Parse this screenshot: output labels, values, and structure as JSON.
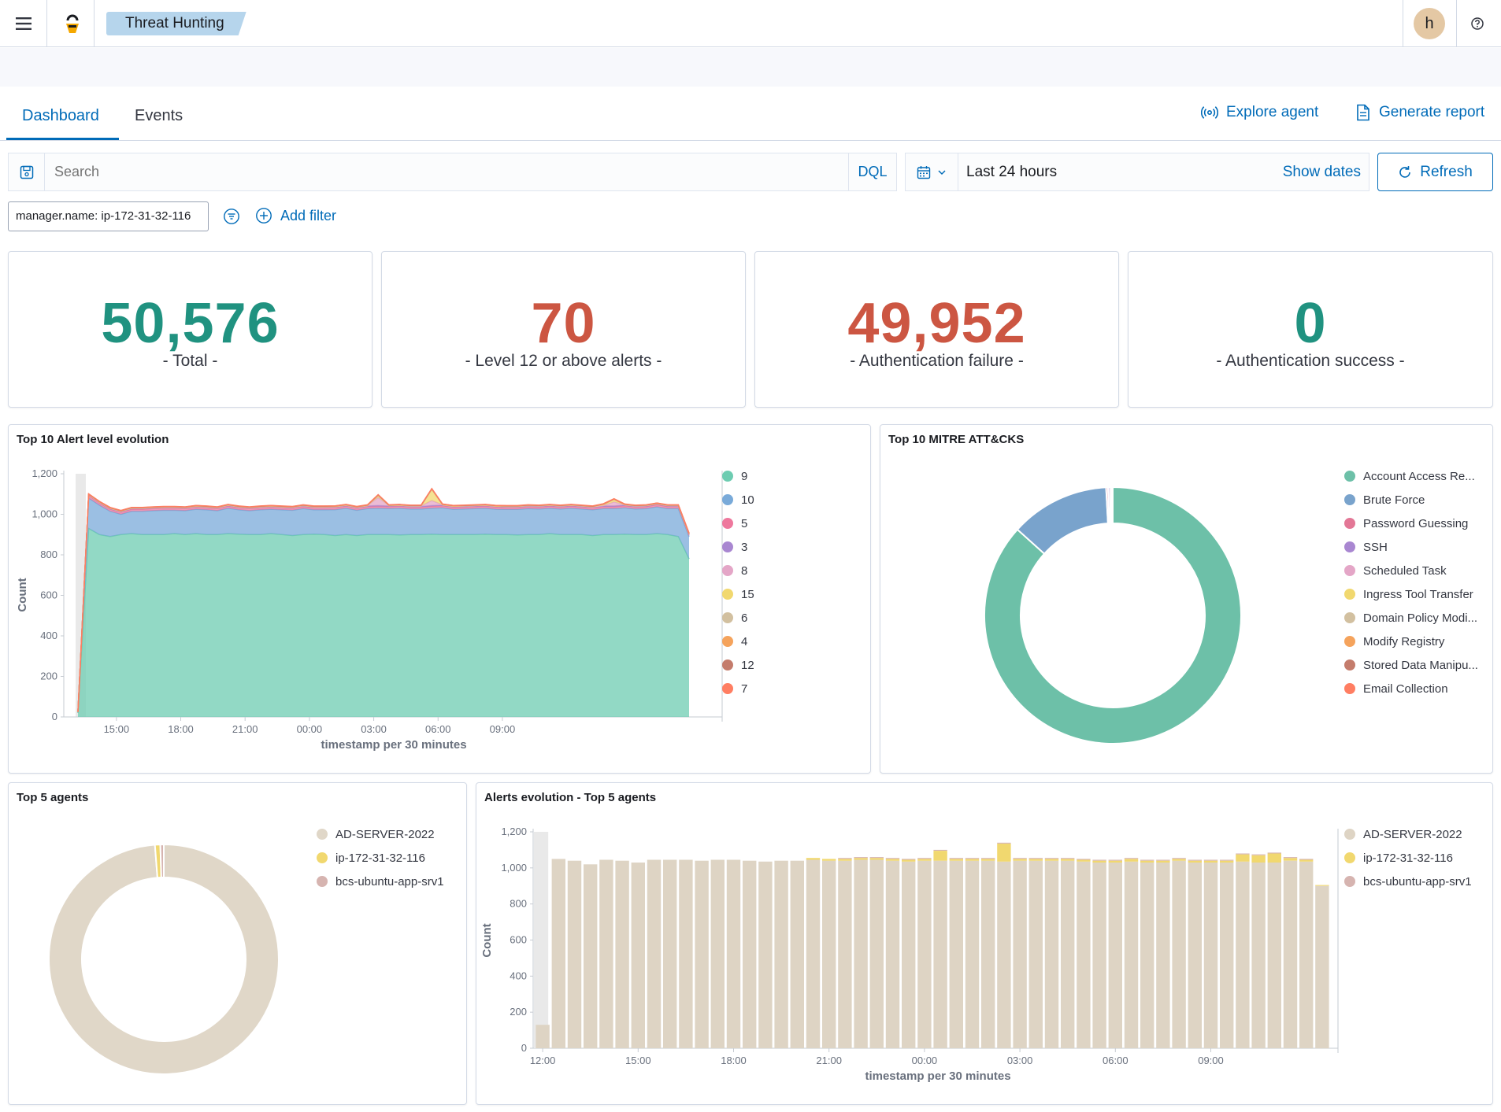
{
  "header": {
    "app_tag": "Threat Hunting",
    "avatar_initial": "h"
  },
  "tabs": [
    {
      "label": "Dashboard",
      "active": true
    },
    {
      "label": "Events",
      "active": false
    }
  ],
  "actions": {
    "explore_agent": "Explore agent",
    "generate_report": "Generate report"
  },
  "search": {
    "placeholder": "Search",
    "language": "DQL"
  },
  "date": {
    "range": "Last 24 hours",
    "show_dates": "Show dates",
    "refresh": "Refresh"
  },
  "filters": {
    "active": [
      "manager.name: ip-172-31-32-116"
    ],
    "add_filter": "Add filter"
  },
  "metrics": [
    {
      "value": "50,576",
      "label": "- Total -",
      "color": "#209280"
    },
    {
      "value": "70",
      "label": "- Level 12 or above alerts -",
      "color": "#cc5642"
    },
    {
      "value": "49,952",
      "label": "- Authentication failure -",
      "color": "#cc5642"
    },
    {
      "value": "0",
      "label": "- Authentication success -",
      "color": "#209280"
    }
  ],
  "panels": {
    "alert_level": "Top 10 Alert level evolution",
    "mitre": "Top 10 MITRE ATT&CKS",
    "agents": "Top 5 agents",
    "agents_evolution": "Alerts evolution - Top 5 agents"
  },
  "chart_data": [
    {
      "type": "area",
      "title": "Top 10 Alert level evolution",
      "xlabel": "timestamp per 30 minutes",
      "ylabel": "Count",
      "ylim": [
        0,
        1200
      ],
      "yticks": [
        "0",
        "200",
        "400",
        "600",
        "800",
        "1,000",
        "1,200"
      ],
      "x_tick_labels": [
        "15:00",
        "18:00",
        "21:00",
        "00:00",
        "03:00",
        "06:00",
        "09:00"
      ],
      "legend": [
        "9",
        "10",
        "5",
        "3",
        "8",
        "15",
        "6",
        "4",
        "12",
        "7"
      ],
      "colors": [
        "#6dccb1",
        "#79aad9",
        "#ee789d",
        "#a987d1",
        "#e4a6c7",
        "#f1d86f",
        "#d2c0a0",
        "#f5a35c",
        "#c47c6c",
        "#ff7e62"
      ],
      "series": [
        {
          "name": "9",
          "values": [
            20,
            930,
            900,
            890,
            900,
            905,
            900,
            900,
            900,
            905,
            900,
            905,
            900,
            900,
            905,
            902,
            900,
            900,
            905,
            900,
            895,
            900,
            902,
            900,
            895,
            900,
            895,
            900,
            900,
            900,
            898,
            900,
            900,
            902,
            900,
            900,
            900,
            900,
            902,
            900,
            900,
            898,
            900,
            900,
            905,
            900,
            900,
            900,
            895,
            900,
            900,
            902,
            900,
            900,
            905,
            900,
            890,
            780
          ]
        },
        {
          "name": "10",
          "values": [
            5,
            150,
            145,
            125,
            100,
            110,
            115,
            118,
            120,
            115,
            118,
            120,
            122,
            118,
            125,
            120,
            118,
            122,
            120,
            122,
            125,
            128,
            120,
            122,
            128,
            130,
            125,
            128,
            130,
            128,
            132,
            126,
            126,
            128,
            132,
            125,
            126,
            128,
            128,
            125,
            124,
            126,
            128,
            126,
            125,
            126,
            130,
            126,
            127,
            128,
            128,
            130,
            126,
            128,
            132,
            128,
            138,
            110
          ]
        },
        {
          "name": "5",
          "values": [
            0,
            12,
            10,
            10,
            10,
            10,
            10,
            10,
            10,
            10,
            10,
            10,
            10,
            10,
            10,
            10,
            10,
            10,
            10,
            10,
            10,
            10,
            10,
            10,
            10,
            10,
            10,
            10,
            10,
            10,
            10,
            10,
            10,
            10,
            10,
            10,
            10,
            10,
            10,
            10,
            10,
            10,
            10,
            10,
            10,
            10,
            10,
            10,
            10,
            10,
            10,
            10,
            10,
            10,
            10,
            10,
            10,
            8
          ]
        },
        {
          "name": "3",
          "values": [
            0,
            3,
            3,
            3,
            3,
            3,
            3,
            3,
            3,
            3,
            3,
            3,
            3,
            3,
            3,
            3,
            3,
            3,
            3,
            3,
            3,
            3,
            3,
            3,
            3,
            3,
            3,
            3,
            3,
            3,
            3,
            3,
            3,
            3,
            3,
            3,
            3,
            3,
            3,
            3,
            3,
            3,
            3,
            3,
            3,
            3,
            3,
            3,
            3,
            3,
            3,
            3,
            3,
            3,
            3,
            3,
            3,
            3
          ]
        },
        {
          "name": "8",
          "values": [
            0,
            2,
            2,
            2,
            2,
            2,
            2,
            2,
            2,
            2,
            2,
            2,
            2,
            2,
            2,
            2,
            2,
            2,
            2,
            2,
            2,
            2,
            2,
            2,
            2,
            2,
            2,
            2,
            40,
            2,
            2,
            2,
            2,
            25,
            2,
            2,
            2,
            2,
            2,
            2,
            2,
            2,
            2,
            2,
            2,
            2,
            2,
            2,
            2,
            2,
            20,
            2,
            2,
            2,
            2,
            2,
            2,
            2
          ]
        },
        {
          "name": "15",
          "values": [
            0,
            0,
            0,
            0,
            0,
            0,
            0,
            0,
            0,
            0,
            0,
            0,
            0,
            0,
            0,
            0,
            0,
            0,
            0,
            0,
            0,
            0,
            0,
            0,
            0,
            0,
            0,
            0,
            10,
            0,
            0,
            0,
            0,
            55,
            0,
            0,
            0,
            0,
            0,
            0,
            0,
            0,
            0,
            0,
            0,
            0,
            0,
            0,
            0,
            5,
            12,
            0,
            0,
            0,
            0,
            0,
            0,
            0
          ]
        },
        {
          "name": "6",
          "values": [
            0,
            1,
            1,
            1,
            1,
            1,
            1,
            1,
            1,
            1,
            1,
            1,
            1,
            1,
            1,
            1,
            1,
            1,
            1,
            1,
            1,
            1,
            1,
            1,
            1,
            1,
            1,
            1,
            1,
            1,
            1,
            1,
            1,
            1,
            1,
            1,
            1,
            1,
            1,
            1,
            1,
            1,
            1,
            1,
            1,
            1,
            1,
            1,
            1,
            1,
            1,
            1,
            1,
            1,
            1,
            1,
            1,
            1
          ]
        },
        {
          "name": "4",
          "values": [
            0,
            1,
            1,
            1,
            1,
            1,
            1,
            1,
            1,
            1,
            1,
            1,
            1,
            1,
            1,
            1,
            1,
            1,
            1,
            1,
            1,
            1,
            1,
            1,
            1,
            1,
            1,
            1,
            1,
            1,
            1,
            1,
            1,
            1,
            1,
            1,
            1,
            1,
            1,
            1,
            1,
            1,
            1,
            1,
            1,
            1,
            1,
            1,
            1,
            1,
            1,
            1,
            1,
            1,
            1,
            1,
            1,
            1
          ]
        },
        {
          "name": "12",
          "values": [
            0,
            1,
            1,
            1,
            1,
            1,
            1,
            1,
            1,
            1,
            1,
            1,
            1,
            1,
            1,
            1,
            1,
            1,
            1,
            1,
            1,
            1,
            1,
            1,
            1,
            1,
            1,
            1,
            1,
            1,
            1,
            1,
            1,
            1,
            1,
            1,
            1,
            1,
            1,
            1,
            1,
            1,
            1,
            1,
            1,
            1,
            1,
            1,
            1,
            1,
            1,
            1,
            1,
            1,
            1,
            1,
            1,
            1
          ]
        },
        {
          "name": "7",
          "values": [
            0,
            1,
            1,
            1,
            1,
            1,
            1,
            1,
            1,
            1,
            1,
            1,
            1,
            1,
            1,
            1,
            1,
            1,
            1,
            1,
            1,
            1,
            1,
            1,
            1,
            1,
            1,
            1,
            1,
            1,
            1,
            1,
            1,
            1,
            1,
            1,
            1,
            1,
            1,
            1,
            1,
            1,
            1,
            1,
            1,
            1,
            1,
            1,
            1,
            1,
            1,
            1,
            1,
            1,
            1,
            1,
            1,
            1
          ]
        }
      ]
    },
    {
      "type": "pie",
      "title": "Top 10 MITRE ATT&CKS",
      "donut": true,
      "categories": [
        "Account Access Re...",
        "Brute Force",
        "Password Guessing",
        "SSH",
        "Scheduled Task",
        "Ingress Tool Transfer",
        "Domain Policy Modi...",
        "Modify Registry",
        "Stored Data Manipu...",
        "Email Collection"
      ],
      "values": [
        43000,
        6200,
        120,
        120,
        110,
        20,
        10,
        10,
        10,
        10
      ],
      "colors": [
        "#6dc0a8",
        "#79a3cc",
        "#e37796",
        "#a987d1",
        "#e4a6c7",
        "#f1d86f",
        "#d2c0a0",
        "#f5a35c",
        "#c47c6c",
        "#ff7e62"
      ]
    },
    {
      "type": "pie",
      "title": "Top 5 agents",
      "donut": true,
      "categories": [
        "AD-SERVER-2022",
        "ip-172-31-32-116",
        "bcs-ubuntu-app-srv1"
      ],
      "values": [
        49952,
        380,
        244
      ],
      "colors": [
        "#e0d7c8",
        "#f1d86f",
        "#d6b4b0"
      ]
    },
    {
      "type": "bar",
      "stacked": true,
      "title": "Alerts evolution - Top 5 agents",
      "xlabel": "timestamp per 30 minutes",
      "ylabel": "Count",
      "ylim": [
        0,
        1200
      ],
      "yticks": [
        "0",
        "200",
        "400",
        "600",
        "800",
        "1,000",
        "1,200"
      ],
      "x_tick_labels": [
        "12:00",
        "15:00",
        "18:00",
        "21:00",
        "00:00",
        "03:00",
        "06:00",
        "09:00"
      ],
      "legend": [
        "AD-SERVER-2022",
        "ip-172-31-32-116",
        "bcs-ubuntu-app-srv1"
      ],
      "colors": [
        "#ded4c4",
        "#f1d86f",
        "#d6b4b0"
      ],
      "series": [
        {
          "name": "AD-SERVER-2022",
          "values": [
            130,
            1050,
            1040,
            1020,
            1045,
            1040,
            1030,
            1045,
            1045,
            1045,
            1040,
            1045,
            1045,
            1040,
            1035,
            1040,
            1040,
            1045,
            1040,
            1040,
            1045,
            1045,
            1040,
            1035,
            1040,
            1040,
            1040,
            1040,
            1040,
            1035,
            1040,
            1040,
            1040,
            1040,
            1035,
            1030,
            1030,
            1035,
            1030,
            1030,
            1040,
            1030,
            1030,
            1030,
            1035,
            1030,
            1030,
            1040,
            1035,
            900
          ]
        },
        {
          "name": "ip-172-31-32-116",
          "values": [
            0,
            0,
            0,
            0,
            0,
            0,
            0,
            0,
            0,
            0,
            0,
            0,
            0,
            0,
            0,
            0,
            0,
            10,
            10,
            10,
            10,
            10,
            10,
            10,
            10,
            55,
            10,
            10,
            10,
            100,
            10,
            10,
            10,
            10,
            10,
            10,
            10,
            15,
            10,
            10,
            10,
            10,
            10,
            10,
            40,
            40,
            50,
            15,
            10,
            5
          ]
        },
        {
          "name": "bcs-ubuntu-app-srv1",
          "values": [
            0,
            0,
            0,
            0,
            0,
            0,
            0,
            0,
            0,
            0,
            0,
            0,
            0,
            0,
            0,
            0,
            0,
            0,
            0,
            5,
            5,
            5,
            5,
            5,
            5,
            5,
            5,
            5,
            5,
            5,
            5,
            5,
            5,
            5,
            5,
            5,
            5,
            5,
            5,
            5,
            5,
            5,
            5,
            5,
            5,
            5,
            5,
            5,
            5,
            0
          ]
        }
      ]
    }
  ]
}
